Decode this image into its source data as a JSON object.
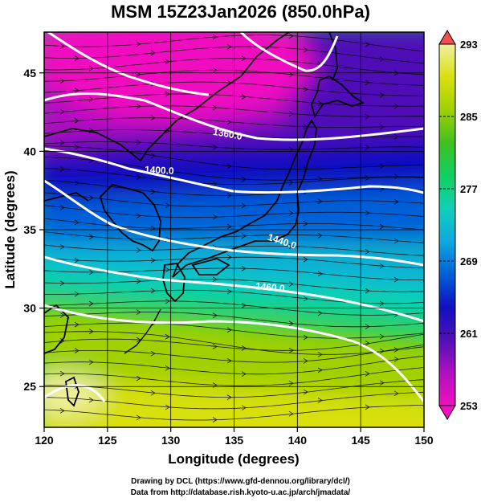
{
  "title": "MSM 15Z23Jan2026 (850.0hPa)",
  "x_axis": {
    "label": "Longitude (degrees)",
    "min": 120,
    "max": 150,
    "ticks": [
      "120",
      "125",
      "130",
      "135",
      "140",
      "145",
      "150"
    ]
  },
  "y_axis": {
    "label": "Latitude (degrees)",
    "min": 22.4,
    "max": 47.6,
    "ticks": [
      "25",
      "30",
      "35",
      "40",
      "45"
    ]
  },
  "colorbar": {
    "min": 253,
    "max": 293,
    "labels": [
      "293",
      "285",
      "277",
      "269",
      "261",
      "253"
    ],
    "colors": [
      "#f0f0a0",
      "#d8e010",
      "#a0d000",
      "#40c020",
      "#10d060",
      "#10d0b8",
      "#10a8e0",
      "#0060d8",
      "#1010c0",
      "#5010b8",
      "#b010c0",
      "#f010c0"
    ]
  },
  "contour_labels": [
    "1360.0",
    "1400.0",
    "1440.0",
    "1460.0"
  ],
  "credits": {
    "line1": "Drawing by DCL (https://www.gfd-dennou.org/library/dcl/)",
    "line2": "Data from http://database.rish.kyoto-u.ac.jp/arch/jmadata/"
  },
  "colors": {
    "contour": "#ffffff",
    "gridline": "#000000",
    "coastline": "#000000"
  }
}
